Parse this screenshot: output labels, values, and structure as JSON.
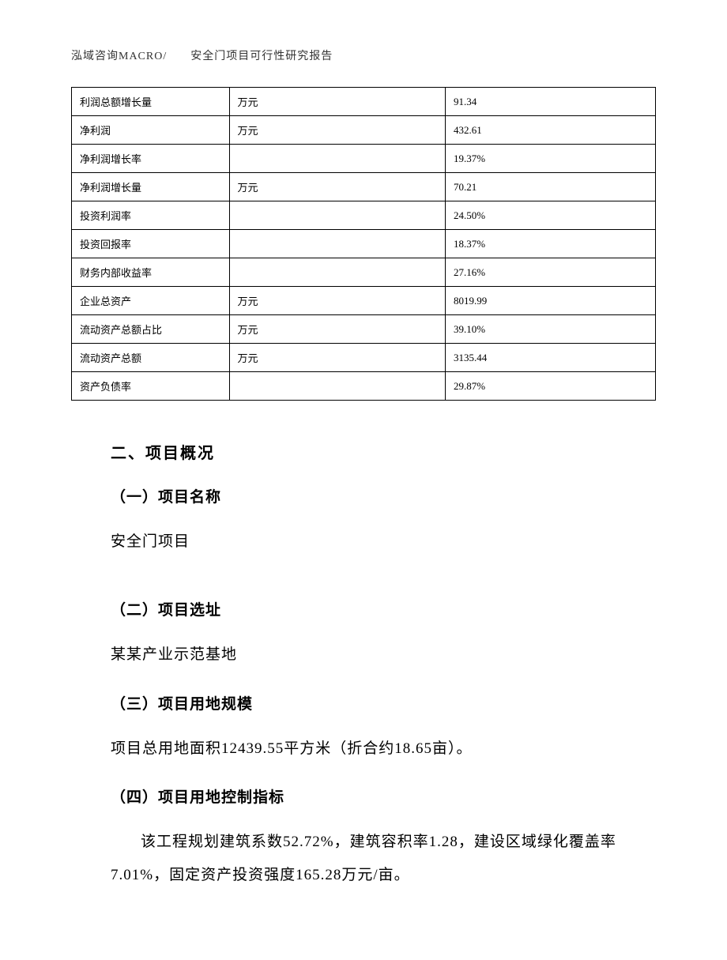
{
  "header": {
    "text": "泓域咨询MACRO/　　安全门项目可行性研究报告"
  },
  "table": {
    "rows": [
      {
        "label": "利润总额增长量",
        "unit": "万元",
        "value": "91.34"
      },
      {
        "label": "净利润",
        "unit": "万元",
        "value": "432.61"
      },
      {
        "label": "净利润增长率",
        "unit": "",
        "value": "19.37%"
      },
      {
        "label": "净利润增长量",
        "unit": "万元",
        "value": "70.21"
      },
      {
        "label": "投资利润率",
        "unit": "",
        "value": "24.50%"
      },
      {
        "label": "投资回报率",
        "unit": "",
        "value": "18.37%"
      },
      {
        "label": "财务内部收益率",
        "unit": "",
        "value": "27.16%"
      },
      {
        "label": "企业总资产",
        "unit": "万元",
        "value": "8019.99"
      },
      {
        "label": "流动资产总额占比",
        "unit": "万元",
        "value": "39.10%"
      },
      {
        "label": "流动资产总额",
        "unit": "万元",
        "value": "3135.44"
      },
      {
        "label": "资产负债率",
        "unit": "",
        "value": "29.87%"
      }
    ]
  },
  "sections": {
    "main_title": "二、项目概况",
    "sub1_title": "（一）项目名称",
    "sub1_text": "安全门项目",
    "sub2_title": "（二）项目选址",
    "sub2_text": "某某产业示范基地",
    "sub3_title": "（三）项目用地规模",
    "sub3_text": "项目总用地面积12439.55平方米（折合约18.65亩）。",
    "sub4_title": "（四）项目用地控制指标",
    "sub4_text": "该工程规划建筑系数52.72%，建筑容积率1.28，建设区域绿化覆盖率7.01%，固定资产投资强度165.28万元/亩。"
  }
}
